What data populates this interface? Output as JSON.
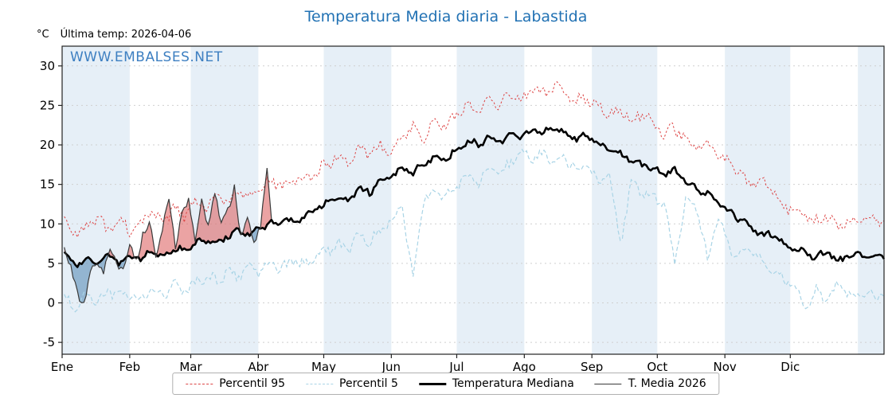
{
  "title": "Temperatura Media diaria - Labastida",
  "header": {
    "unit_label": "°C",
    "last_temp_label": "Última temp: 2026-04-06"
  },
  "watermark": "WWW.EMBALSES.NET",
  "colors": {
    "title": "#2272b4",
    "watermark": "#3d7fc1",
    "p95": "#dd4444",
    "p5": "#a9d4e6",
    "median": "#000000",
    "t2026": "#3a3a3a",
    "fill_above": "#dd6666",
    "fill_below": "#5b8db8",
    "band": "#e6eff7",
    "grid": "#cfcfcf",
    "frame": "#222222"
  },
  "chart_data": {
    "type": "line",
    "title": "Temperatura Media diaria - Labastida",
    "xlabel": "",
    "ylabel": "°C",
    "ylim": [
      -6.5,
      32.5
    ],
    "xlim_days": [
      0,
      377
    ],
    "yticks": [
      -5,
      0,
      5,
      10,
      15,
      20,
      25,
      30
    ],
    "month_labels": [
      "Ene",
      "Feb",
      "Mar",
      "Abr",
      "May",
      "Jun",
      "Jul",
      "Ago",
      "Sep",
      "Oct",
      "Nov",
      "Dic"
    ],
    "month_starts": [
      0,
      31,
      59,
      90,
      120,
      151,
      181,
      212,
      243,
      273,
      304,
      334
    ],
    "grid": "horizontal-dotted",
    "legend_position": "bottom",
    "legend": [
      "Percentil 95",
      "Percentil 5",
      "Temperatura Mediana",
      "T. Media 2026"
    ],
    "annotations": [
      "WWW.EMBALSES.NET",
      "Última temp: 2026-04-06"
    ],
    "series": [
      {
        "name": "Percentil 95",
        "style": "dashed-thin",
        "color_key": "p95",
        "x_start_day": 1,
        "x_step_days": 5,
        "y": [
          10.2,
          8.8,
          9.5,
          10.8,
          9.0,
          10.5,
          9.3,
          10.0,
          11.5,
          10.2,
          12.0,
          11.0,
          13.0,
          12.0,
          13.5,
          12.5,
          14.0,
          13.0,
          14.5,
          15.5,
          14.8,
          16.0,
          15.2,
          16.5,
          17.5,
          18.5,
          17.8,
          19.5,
          18.8,
          20.0,
          19.2,
          21.0,
          22.0,
          21.2,
          23.0,
          22.4,
          24.0,
          25.0,
          24.2,
          25.8,
          25.0,
          26.5,
          25.6,
          27.2,
          26.4,
          27.5,
          26.2,
          25.4,
          26.0,
          24.8,
          23.8,
          24.5,
          23.2,
          24.0,
          22.8,
          21.5,
          22.2,
          20.8,
          20.0,
          20.5,
          19.0,
          17.5,
          16.5,
          15.0,
          15.8,
          14.0,
          12.5,
          11.5,
          11.0,
          10.2,
          11.2,
          9.8,
          10.5
        ]
      },
      {
        "name": "Percentil 5",
        "style": "dashed-thin",
        "color_key": "p5",
        "x_start_day": 1,
        "x_step_days": 5,
        "y": [
          0.5,
          -0.5,
          1.0,
          0.2,
          1.5,
          0.8,
          1.2,
          0.5,
          1.8,
          1.0,
          2.2,
          1.5,
          2.5,
          3.5,
          2.8,
          4.0,
          3.2,
          4.5,
          4.0,
          5.0,
          4.2,
          5.5,
          4.8,
          6.0,
          6.5,
          7.5,
          6.8,
          8.5,
          7.8,
          9.0,
          10.5,
          12.0,
          3.5,
          13.0,
          14.0,
          13.2,
          15.0,
          16.0,
          15.2,
          17.0,
          16.2,
          18.0,
          18.8,
          18.2,
          19.0,
          17.8,
          18.4,
          16.8,
          17.5,
          15.5,
          16.2,
          7.5,
          15.0,
          14.2,
          13.5,
          12.8,
          5.0,
          13.0,
          12.2,
          5.5,
          11.0,
          7.0,
          6.0,
          6.8,
          5.2,
          4.0,
          3.0,
          2.0,
          -0.5,
          1.5,
          0.5,
          2.5,
          1.0
        ]
      },
      {
        "name": "Temperatura Mediana",
        "style": "solid-thick",
        "color_key": "median",
        "x_start_day": 1,
        "x_step_days": 5,
        "y": [
          6.5,
          4.8,
          5.5,
          5.0,
          5.8,
          5.2,
          6.0,
          5.5,
          6.5,
          6.0,
          7.0,
          6.5,
          7.5,
          8.0,
          7.6,
          8.5,
          9.0,
          8.6,
          9.5,
          10.0,
          10.5,
          10.2,
          11.0,
          12.0,
          12.5,
          13.5,
          13.0,
          14.5,
          14.0,
          15.5,
          16.0,
          17.0,
          16.5,
          17.5,
          18.5,
          18.0,
          19.5,
          20.5,
          20.0,
          21.0,
          20.5,
          21.5,
          21.0,
          22.0,
          21.5,
          22.2,
          21.2,
          20.8,
          21.4,
          20.0,
          19.5,
          18.8,
          18.2,
          17.5,
          17.0,
          16.2,
          16.8,
          15.5,
          14.5,
          13.8,
          12.5,
          11.5,
          10.5,
          9.5,
          8.5,
          8.8,
          7.5,
          6.8,
          6.2,
          5.8,
          6.5,
          5.2,
          6.0
        ]
      },
      {
        "name": "T. Media 2026",
        "style": "solid-thin",
        "color_key": "t2026",
        "x": [
          1,
          4,
          7,
          10,
          13,
          16,
          19,
          22,
          25,
          28,
          31,
          34,
          37,
          40,
          43,
          46,
          49,
          52,
          55,
          58,
          61,
          64,
          67,
          70,
          73,
          76,
          79,
          82,
          85,
          88,
          91,
          94,
          96
        ],
        "y": [
          7.0,
          4.5,
          1.0,
          0.0,
          3.5,
          5.5,
          4.0,
          6.5,
          5.0,
          4.2,
          6.8,
          5.5,
          8.5,
          10.0,
          6.5,
          9.0,
          13.5,
          7.5,
          11.0,
          13.0,
          8.0,
          12.5,
          10.0,
          14.0,
          9.5,
          12.0,
          14.5,
          8.0,
          11.5,
          7.0,
          9.5,
          17.8,
          10.5
        ],
        "fill_vs_median": {
          "above": "red",
          "below": "blue"
        }
      }
    ]
  }
}
